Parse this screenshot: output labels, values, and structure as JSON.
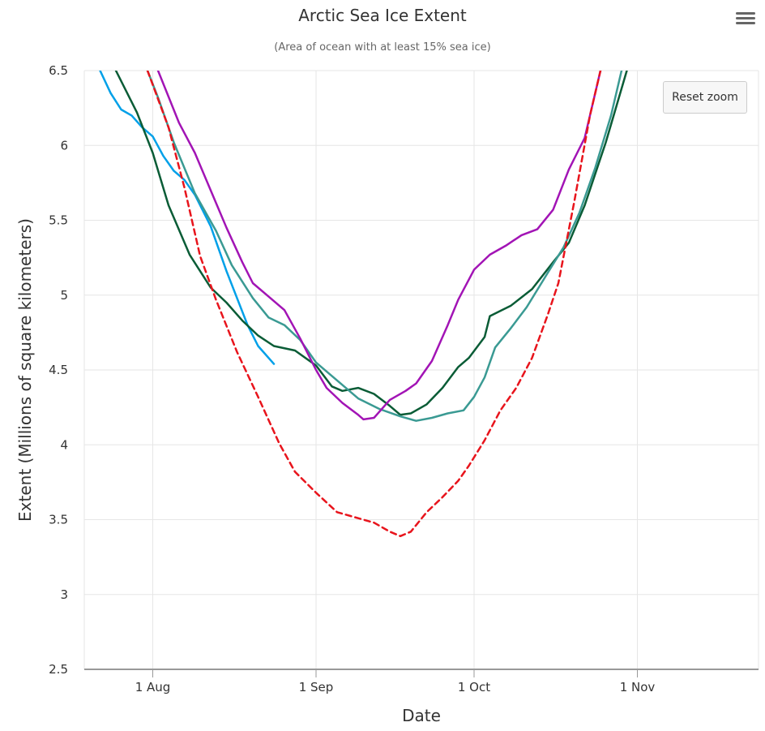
{
  "chart_data": {
    "type": "line",
    "title": "Arctic Sea Ice Extent",
    "subtitle": "(Area of ocean with at least 15% sea ice)",
    "xlabel": "Date",
    "ylabel": "Extent (Millions of square kilometers)",
    "ylim": [
      2.5,
      6.5
    ],
    "yticks": [
      "2.5",
      "3",
      "3.5",
      "4",
      "4.5",
      "5",
      "5.5",
      "6",
      "6.5"
    ],
    "xlim": [
      "2020-07-19",
      "2020-11-24"
    ],
    "xticks": [
      {
        "date": "2020-08-01",
        "label": "1 Aug"
      },
      {
        "date": "2020-09-01",
        "label": "1 Sep"
      },
      {
        "date": "2020-10-01",
        "label": "1 Oct"
      },
      {
        "date": "2020-11-01",
        "label": "1 Nov"
      }
    ],
    "grid": true,
    "series": [
      {
        "color": "#00a0e8",
        "dash": "solid",
        "points": [
          [
            "2020-07-22",
            6.5
          ],
          [
            "2020-07-24",
            6.35
          ],
          [
            "2020-07-26",
            6.24
          ],
          [
            "2020-07-28",
            6.2
          ],
          [
            "2020-07-30",
            6.12
          ],
          [
            "2020-08-01",
            6.06
          ],
          [
            "2020-08-03",
            5.93
          ],
          [
            "2020-08-05",
            5.83
          ],
          [
            "2020-08-07",
            5.77
          ],
          [
            "2020-08-09",
            5.67
          ],
          [
            "2020-08-12",
            5.46
          ],
          [
            "2020-08-15",
            5.16
          ],
          [
            "2020-08-17",
            4.98
          ],
          [
            "2020-08-19",
            4.8
          ],
          [
            "2020-08-21",
            4.66
          ],
          [
            "2020-08-24",
            4.54
          ]
        ]
      },
      {
        "color": "#0a5c36",
        "dash": "solid",
        "points": [
          [
            "2020-07-25",
            6.5
          ],
          [
            "2020-07-29",
            6.22
          ],
          [
            "2020-08-01",
            5.95
          ],
          [
            "2020-08-04",
            5.6
          ],
          [
            "2020-08-08",
            5.27
          ],
          [
            "2020-08-12",
            5.05
          ],
          [
            "2020-08-15",
            4.95
          ],
          [
            "2020-08-18",
            4.83
          ],
          [
            "2020-08-21",
            4.73
          ],
          [
            "2020-08-24",
            4.66
          ],
          [
            "2020-08-28",
            4.63
          ],
          [
            "2020-09-01",
            4.53
          ],
          [
            "2020-09-04",
            4.39
          ],
          [
            "2020-09-06",
            4.36
          ],
          [
            "2020-09-09",
            4.38
          ],
          [
            "2020-09-12",
            4.34
          ],
          [
            "2020-09-15",
            4.26
          ],
          [
            "2020-09-17",
            4.2
          ],
          [
            "2020-09-19",
            4.21
          ],
          [
            "2020-09-22",
            4.27
          ],
          [
            "2020-09-25",
            4.38
          ],
          [
            "2020-09-28",
            4.52
          ],
          [
            "2020-09-30",
            4.58
          ],
          [
            "2020-10-03",
            4.72
          ],
          [
            "2020-10-04",
            4.86
          ],
          [
            "2020-10-08",
            4.93
          ],
          [
            "2020-10-12",
            5.04
          ],
          [
            "2020-10-16",
            5.22
          ],
          [
            "2020-10-19",
            5.35
          ],
          [
            "2020-10-22",
            5.6
          ],
          [
            "2020-10-26",
            6.02
          ],
          [
            "2020-10-30",
            6.5
          ]
        ]
      },
      {
        "color": "#3a9a93",
        "dash": "solid",
        "points": [
          [
            "2020-07-31",
            6.5
          ],
          [
            "2020-08-02",
            6.32
          ],
          [
            "2020-08-05",
            6.02
          ],
          [
            "2020-08-09",
            5.68
          ],
          [
            "2020-08-13",
            5.43
          ],
          [
            "2020-08-16",
            5.2
          ],
          [
            "2020-08-20",
            4.98
          ],
          [
            "2020-08-23",
            4.85
          ],
          [
            "2020-08-26",
            4.8
          ],
          [
            "2020-08-29",
            4.7
          ],
          [
            "2020-09-01",
            4.55
          ],
          [
            "2020-09-05",
            4.43
          ],
          [
            "2020-09-09",
            4.31
          ],
          [
            "2020-09-13",
            4.24
          ],
          [
            "2020-09-17",
            4.19
          ],
          [
            "2020-09-20",
            4.16
          ],
          [
            "2020-09-23",
            4.18
          ],
          [
            "2020-09-26",
            4.21
          ],
          [
            "2020-09-29",
            4.23
          ],
          [
            "2020-10-01",
            4.32
          ],
          [
            "2020-10-03",
            4.45
          ],
          [
            "2020-10-05",
            4.65
          ],
          [
            "2020-10-08",
            4.78
          ],
          [
            "2020-10-11",
            4.92
          ],
          [
            "2020-10-15",
            5.15
          ],
          [
            "2020-10-18",
            5.32
          ],
          [
            "2020-10-21",
            5.55
          ],
          [
            "2020-10-24",
            5.85
          ],
          [
            "2020-10-27",
            6.2
          ],
          [
            "2020-10-29",
            6.5
          ]
        ]
      },
      {
        "color": "#a214b5",
        "dash": "solid",
        "points": [
          [
            "2020-08-02",
            6.5
          ],
          [
            "2020-08-06",
            6.15
          ],
          [
            "2020-08-09",
            5.95
          ],
          [
            "2020-08-12",
            5.7
          ],
          [
            "2020-08-15",
            5.45
          ],
          [
            "2020-08-18",
            5.22
          ],
          [
            "2020-08-20",
            5.08
          ],
          [
            "2020-08-23",
            4.99
          ],
          [
            "2020-08-26",
            4.9
          ],
          [
            "2020-08-29",
            4.71
          ],
          [
            "2020-09-01",
            4.5
          ],
          [
            "2020-09-03",
            4.38
          ],
          [
            "2020-09-06",
            4.28
          ],
          [
            "2020-09-09",
            4.2
          ],
          [
            "2020-09-10",
            4.17
          ],
          [
            "2020-09-12",
            4.18
          ],
          [
            "2020-09-15",
            4.3
          ],
          [
            "2020-09-18",
            4.36
          ],
          [
            "2020-09-20",
            4.41
          ],
          [
            "2020-09-23",
            4.56
          ],
          [
            "2020-09-26",
            4.8
          ],
          [
            "2020-09-28",
            4.97
          ],
          [
            "2020-10-01",
            5.17
          ],
          [
            "2020-10-04",
            5.27
          ],
          [
            "2020-10-07",
            5.33
          ],
          [
            "2020-10-10",
            5.4
          ],
          [
            "2020-10-13",
            5.44
          ],
          [
            "2020-10-16",
            5.57
          ],
          [
            "2020-10-19",
            5.84
          ],
          [
            "2020-10-22",
            6.05
          ],
          [
            "2020-10-25",
            6.5
          ]
        ]
      },
      {
        "color": "#e8141c",
        "dash": "dashed",
        "points": [
          [
            "2020-07-31",
            6.5
          ],
          [
            "2020-08-04",
            6.12
          ],
          [
            "2020-08-07",
            5.72
          ],
          [
            "2020-08-10",
            5.26
          ],
          [
            "2020-08-13",
            4.97
          ],
          [
            "2020-08-17",
            4.62
          ],
          [
            "2020-08-21",
            4.32
          ],
          [
            "2020-08-25",
            4.01
          ],
          [
            "2020-08-28",
            3.82
          ],
          [
            "2020-09-01",
            3.68
          ],
          [
            "2020-09-05",
            3.55
          ],
          [
            "2020-09-09",
            3.51
          ],
          [
            "2020-09-12",
            3.48
          ],
          [
            "2020-09-15",
            3.42
          ],
          [
            "2020-09-17",
            3.39
          ],
          [
            "2020-09-19",
            3.42
          ],
          [
            "2020-09-22",
            3.55
          ],
          [
            "2020-09-25",
            3.65
          ],
          [
            "2020-09-28",
            3.76
          ],
          [
            "2020-09-30",
            3.86
          ],
          [
            "2020-10-03",
            4.03
          ],
          [
            "2020-10-06",
            4.23
          ],
          [
            "2020-10-09",
            4.38
          ],
          [
            "2020-10-12",
            4.58
          ],
          [
            "2020-10-15",
            4.87
          ],
          [
            "2020-10-17",
            5.08
          ],
          [
            "2020-10-20",
            5.62
          ],
          [
            "2020-10-23",
            6.2
          ],
          [
            "2020-10-25",
            6.5
          ]
        ]
      }
    ]
  },
  "ui": {
    "reset_zoom_label": "Reset zoom",
    "menu_icon": "hamburger-menu-icon"
  }
}
